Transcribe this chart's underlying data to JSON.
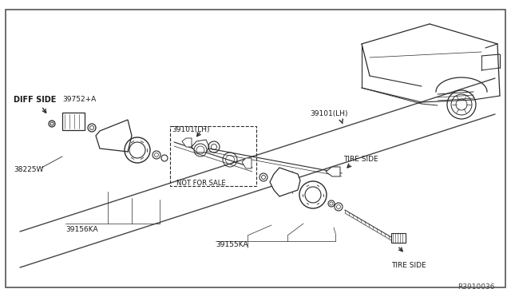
{
  "bg_color": "#ffffff",
  "border_color": "#777777",
  "line_color": "#2a2a2a",
  "text_color": "#1a1a1a",
  "part_number": "R3910036",
  "labels": {
    "diff_side": "DIFF SIDE",
    "tire_side_upper": "TIRE SIDE",
    "tire_side_lower": "TIRE SIDE",
    "not_for_sale": "NOT FOR SALE",
    "part_39752": "39752+A",
    "part_38225": "38225W",
    "part_39156": "39156KA",
    "part_39155": "39155KA",
    "part_39101_lh1": "39101(LH)",
    "part_39101_lh2": "39101(LH)"
  }
}
